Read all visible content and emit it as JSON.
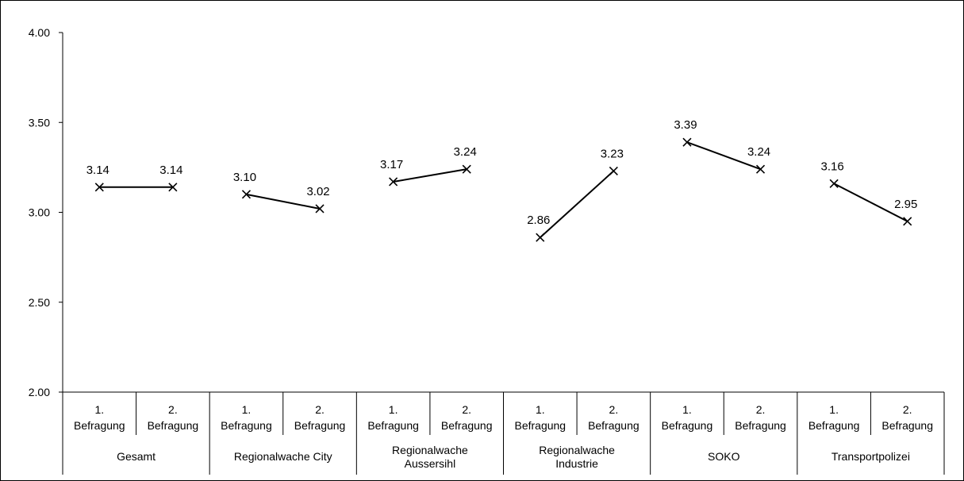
{
  "chart_data": {
    "type": "line",
    "title": "",
    "xlabel": "",
    "ylabel": "",
    "ylim": [
      2.0,
      4.0
    ],
    "y_ticks": [
      "2.00",
      "2.50",
      "3.00",
      "3.50",
      "4.00"
    ],
    "grid": false,
    "legend": "none",
    "marker": "x",
    "line_color": "#000000",
    "groups": [
      {
        "name": "Gesamt",
        "categories": [
          "1. Befragung",
          "2. Befragung"
        ],
        "values": [
          3.14,
          3.14
        ],
        "labels": [
          "3.14",
          "3.14"
        ]
      },
      {
        "name": "Regionalwache City",
        "categories": [
          "1. Befragung",
          "2. Befragung"
        ],
        "values": [
          3.1,
          3.02
        ],
        "labels": [
          "3.10",
          "3.02"
        ]
      },
      {
        "name": "Regionalwache Aussersihl",
        "categories": [
          "1. Befragung",
          "2. Befragung"
        ],
        "values": [
          3.17,
          3.24
        ],
        "labels": [
          "3.17",
          "3.24"
        ]
      },
      {
        "name": "Regionalwache Industrie",
        "categories": [
          "1. Befragung",
          "2. Befragung"
        ],
        "values": [
          2.86,
          3.23
        ],
        "labels": [
          "2.86",
          "3.23"
        ]
      },
      {
        "name": "SOKO",
        "categories": [
          "1. Befragung",
          "2. Befragung"
        ],
        "values": [
          3.39,
          3.24
        ],
        "labels": [
          "3.39",
          "3.24"
        ]
      },
      {
        "name": "Transportpolizei",
        "categories": [
          "1. Befragung",
          "2. Befragung"
        ],
        "values": [
          3.16,
          2.95
        ],
        "labels": [
          "3.16",
          "2.95"
        ]
      }
    ]
  }
}
